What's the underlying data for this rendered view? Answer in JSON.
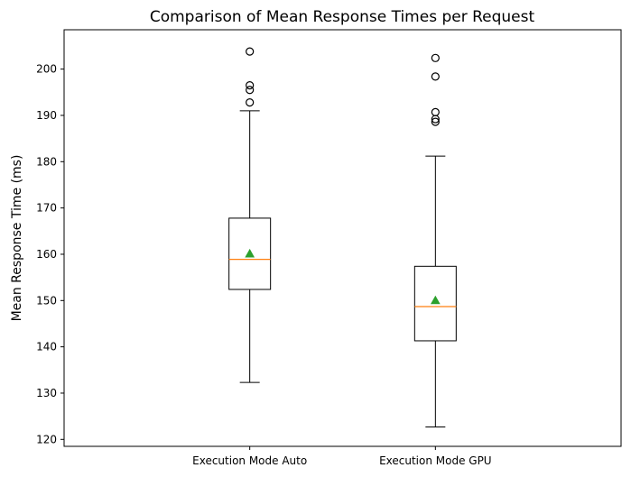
{
  "chart_data": {
    "type": "box",
    "title": "Comparison of Mean Response Times per Request",
    "xlabel": "",
    "ylabel": "Mean Response Time (ms)",
    "ylim": [
      118.5,
      208.5
    ],
    "yticks": [
      120,
      130,
      140,
      150,
      160,
      170,
      180,
      190,
      200
    ],
    "grid": false,
    "categories": [
      "Execution Mode Auto",
      "Execution Mode GPU"
    ],
    "boxes": [
      {
        "name": "Execution Mode Auto",
        "whisker_low": 132.3,
        "q1": 152.4,
        "median": 158.9,
        "q3": 167.8,
        "whisker_high": 191.0,
        "mean": 160.1,
        "outliers": [
          192.8,
          195.5,
          196.5,
          203.8
        ]
      },
      {
        "name": "Execution Mode GPU",
        "whisker_low": 122.7,
        "q1": 141.3,
        "median": 148.7,
        "q3": 157.4,
        "whisker_high": 181.2,
        "mean": 150.0,
        "outliers": [
          188.6,
          189.2,
          190.7,
          198.4,
          202.4
        ]
      }
    ],
    "colors": {
      "box": "#000000",
      "median": "#ff7f0e",
      "mean": "#2ca02c",
      "outlier": "#000000"
    }
  }
}
